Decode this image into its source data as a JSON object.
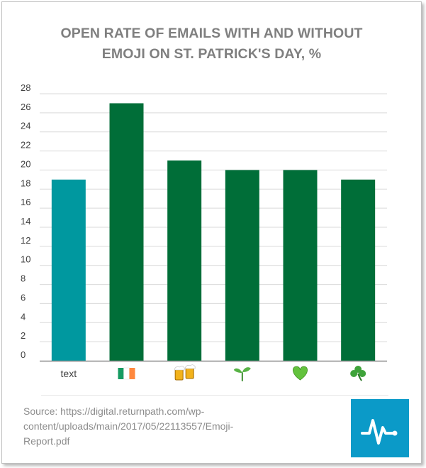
{
  "chart_data": {
    "type": "bar",
    "title_lines": [
      "OPEN RATE OF EMAILS WITH AND WITHOUT",
      "EMOJI ON ST. PATRICK'S DAY, %"
    ],
    "categories": [
      "text",
      "🇮🇪",
      "🍻",
      "🌱",
      "💚",
      "☘️"
    ],
    "category_icons": [
      "",
      "ireland-flag-icon",
      "beer-mugs-icon",
      "seedling-icon",
      "green-heart-icon",
      "shamrock-icon"
    ],
    "values": [
      19,
      27,
      21,
      20,
      20,
      19
    ],
    "yticks": [
      0,
      2,
      4,
      6,
      8,
      10,
      12,
      14,
      16,
      18,
      20,
      22,
      24,
      26,
      28
    ],
    "ylim": [
      0,
      28
    ],
    "grid": true,
    "colors": {
      "text": "#00989f",
      "emoji": "#006e38",
      "gridline": "#d9d9d9",
      "axis": "#8c8c8c"
    }
  },
  "source_text": "Source: https://digital.returnpath.com/wp-content/uploads/main/2017/05/22113557/Emoji-Report.pdf",
  "logo": {
    "icon": "pulse-line-icon",
    "background": "#0b9ac8"
  }
}
